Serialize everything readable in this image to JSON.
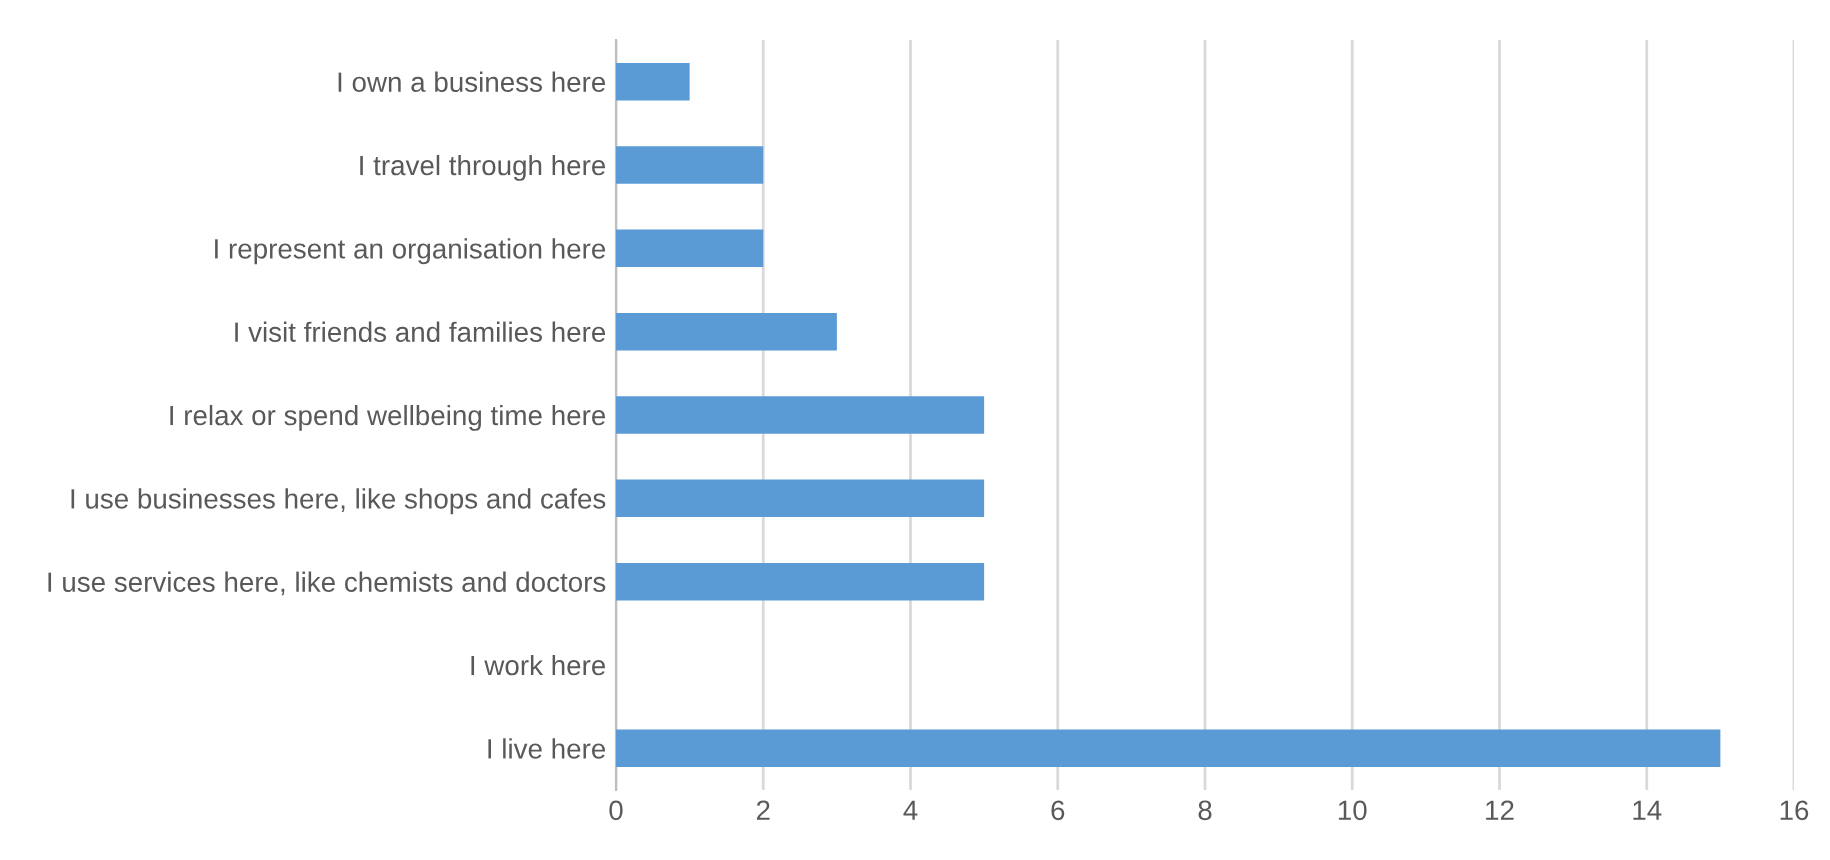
{
  "chart_data": {
    "type": "bar",
    "orientation": "horizontal",
    "categories": [
      "I own a business here",
      "I travel through here",
      "I represent an organisation here",
      "I visit friends and families here",
      "I relax or spend wellbeing time here",
      "I use businesses here, like shops and cafes",
      "I use services here, like chemists and doctors",
      "I work here",
      "I live here"
    ],
    "values": [
      1,
      2,
      2,
      3,
      5,
      5,
      5,
      0,
      15
    ],
    "color": "#5b9bd5",
    "xlim": [
      0,
      16
    ],
    "xticks": [
      0,
      2,
      4,
      6,
      8,
      10,
      12,
      14,
      16
    ],
    "grid": "x"
  }
}
